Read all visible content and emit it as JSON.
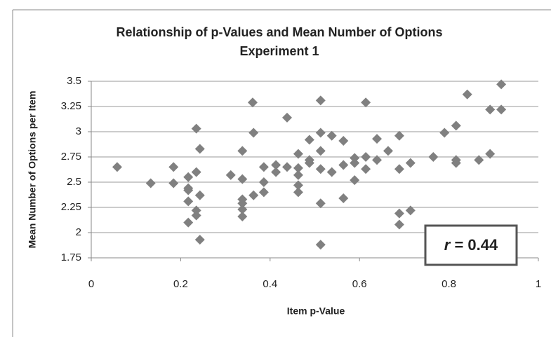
{
  "chart_data": {
    "type": "scatter",
    "title": "Relationship of p-Values and Mean Number of Options",
    "subtitle": "Experiment 1",
    "x_label": "Item p-Value",
    "y_label": "Mean Number of Options per Item",
    "annotation": {
      "symbol": "r",
      "text": "= 0.44"
    },
    "color": "#808080",
    "grid": true,
    "xlim": [
      0,
      1
    ],
    "xticks": [
      0,
      0.2,
      0.4,
      0.6,
      0.8,
      1
    ],
    "ylim": [
      1.75,
      3.5
    ],
    "yticks": [
      3.5,
      3.25,
      3,
      2.75,
      2.5,
      2.25,
      2,
      1.75
    ],
    "x": [
      0.058,
      0.133,
      0.184,
      0.184,
      0.235,
      0.235,
      0.235,
      0.235,
      0.217,
      0.217,
      0.217,
      0.217,
      0.217,
      0.243,
      0.243,
      0.243,
      0.312,
      0.338,
      0.338,
      0.338,
      0.338,
      0.338,
      0.338,
      0.361,
      0.363,
      0.363,
      0.386,
      0.386,
      0.386,
      0.413,
      0.413,
      0.438,
      0.438,
      0.463,
      0.463,
      0.463,
      0.463,
      0.463,
      0.488,
      0.488,
      0.488,
      0.513,
      0.513,
      0.513,
      0.513,
      0.513,
      0.513,
      0.538,
      0.538,
      0.564,
      0.564,
      0.564,
      0.589,
      0.589,
      0.589,
      0.614,
      0.614,
      0.614,
      0.639,
      0.639,
      0.664,
      0.689,
      0.689,
      0.689,
      0.689,
      0.714,
      0.714,
      0.765,
      0.79,
      0.816,
      0.816,
      0.816,
      0.867,
      0.841,
      0.892,
      0.892,
      0.917,
      0.917
    ],
    "values": [
      2.65,
      2.49,
      2.65,
      2.49,
      3.03,
      2.6,
      2.22,
      2.17,
      2.55,
      2.44,
      2.42,
      2.31,
      2.1,
      1.93,
      2.37,
      2.83,
      2.57,
      2.81,
      2.53,
      2.33,
      2.29,
      2.23,
      2.16,
      3.29,
      2.99,
      2.37,
      2.65,
      2.5,
      2.4,
      2.67,
      2.6,
      2.65,
      3.14,
      2.78,
      2.64,
      2.57,
      2.47,
      2.4,
      2.92,
      2.72,
      2.69,
      3.31,
      2.99,
      2.81,
      2.63,
      2.29,
      1.88,
      2.96,
      2.6,
      2.91,
      2.67,
      2.34,
      2.74,
      2.69,
      2.52,
      3.29,
      2.75,
      2.63,
      2.93,
      2.72,
      2.81,
      2.96,
      2.63,
      2.19,
      2.08,
      2.69,
      2.22,
      2.75,
      2.99,
      2.72,
      2.69,
      3.06,
      2.72,
      3.37,
      3.22,
      2.78,
      3.22,
      3.47
    ]
  }
}
